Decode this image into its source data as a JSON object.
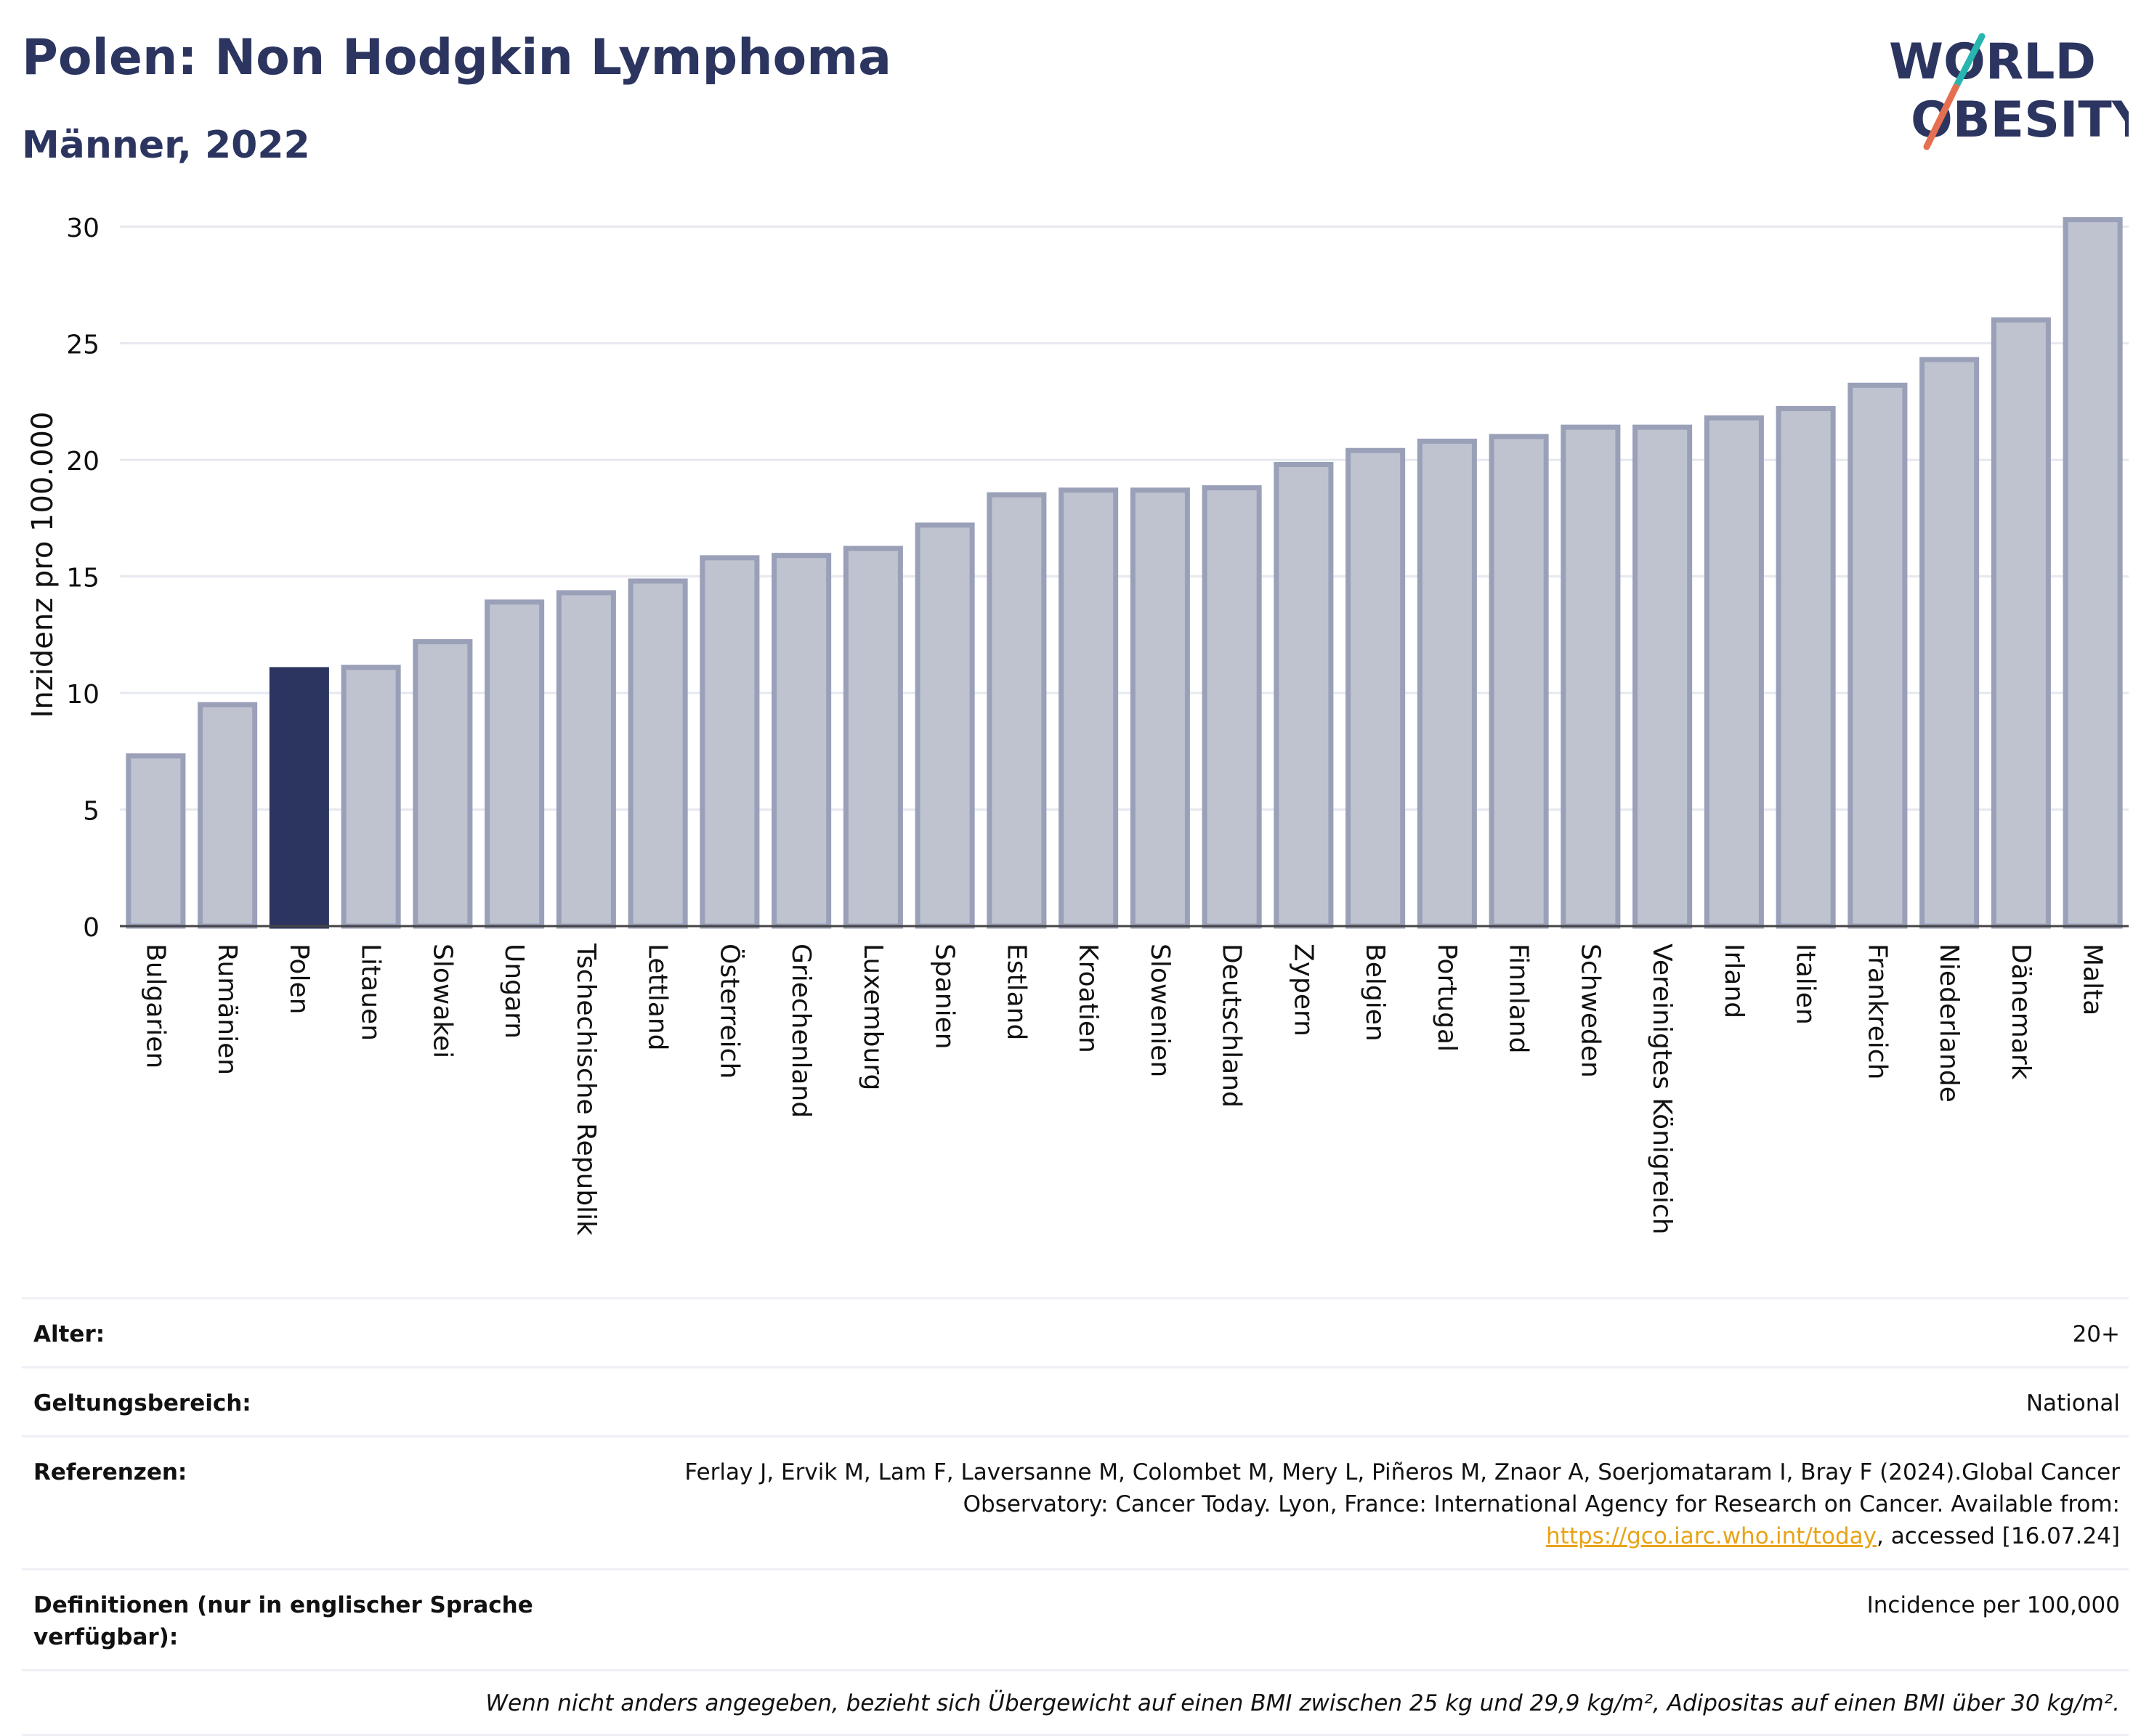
{
  "header": {
    "title": "Polen: Non Hodgkin Lymphoma",
    "subtitle": "Männer, 2022",
    "logo_line1": "WORLD",
    "logo_line2": "OBESITY"
  },
  "colors": {
    "bar": "#bfc3d0",
    "bar_stroke": "#9aa0b8",
    "highlight": "#2b3560",
    "grid": "#e6e8ef",
    "logo_navy": "#2b3560",
    "logo_teal": "#27b5b0",
    "logo_coral": "#e76f51"
  },
  "chart_data": {
    "type": "bar",
    "ylabel": "Inzidenz pro 100.000",
    "ylim": [
      0,
      31
    ],
    "yticks": [
      0,
      5,
      10,
      15,
      20,
      25,
      30
    ],
    "grid": true,
    "highlight": "Polen",
    "categories": [
      "Bulgarien",
      "Rumänien",
      "Polen",
      "Litauen",
      "Slowakei",
      "Ungarn",
      "Tschechische Republik",
      "Lettland",
      "Österreich",
      "Griechenland",
      "Luxemburg",
      "Spanien",
      "Estland",
      "Kroatien",
      "Slowenien",
      "Deutschland",
      "Zypern",
      "Belgien",
      "Portugal",
      "Finnland",
      "Schweden",
      "Vereinigtes Königreich",
      "Irland",
      "Italien",
      "Frankreich",
      "Niederlande",
      "Dänemark",
      "Malta"
    ],
    "values": [
      7.3,
      9.5,
      11.0,
      11.1,
      12.2,
      13.9,
      14.3,
      14.8,
      15.8,
      15.9,
      16.2,
      17.2,
      18.5,
      18.7,
      18.7,
      18.8,
      19.8,
      20.4,
      20.8,
      21.0,
      21.4,
      21.4,
      21.8,
      22.2,
      23.2,
      24.3,
      26.0,
      30.3
    ]
  },
  "meta": {
    "age_label": "Alter:",
    "age_value": "20+",
    "scope_label": "Geltungsbereich:",
    "scope_value": "National",
    "ref_label": "Referenzen:",
    "ref_text": "Ferlay J, Ervik M, Lam F, Laversanne M, Colombet M, Mery L, Piñeros M, Znaor A, Soerjomataram I, Bray F (2024).Global Cancer Observatory: Cancer Today. Lyon, France: International Agency for Research on Cancer. Available from:",
    "ref_link": "https://gco.iarc.who.int/today",
    "ref_suffix": ", accessed [16.07.24]",
    "def_label": "Definitionen (nur in englischer Sprache verfügbar):",
    "def_value": "Incidence per 100,000",
    "note": "Wenn nicht anders angegeben, bezieht sich Übergewicht auf einen BMI zwischen 25 kg und 29,9 kg/m², Adipositas auf einen BMI über 30 kg/m²."
  }
}
